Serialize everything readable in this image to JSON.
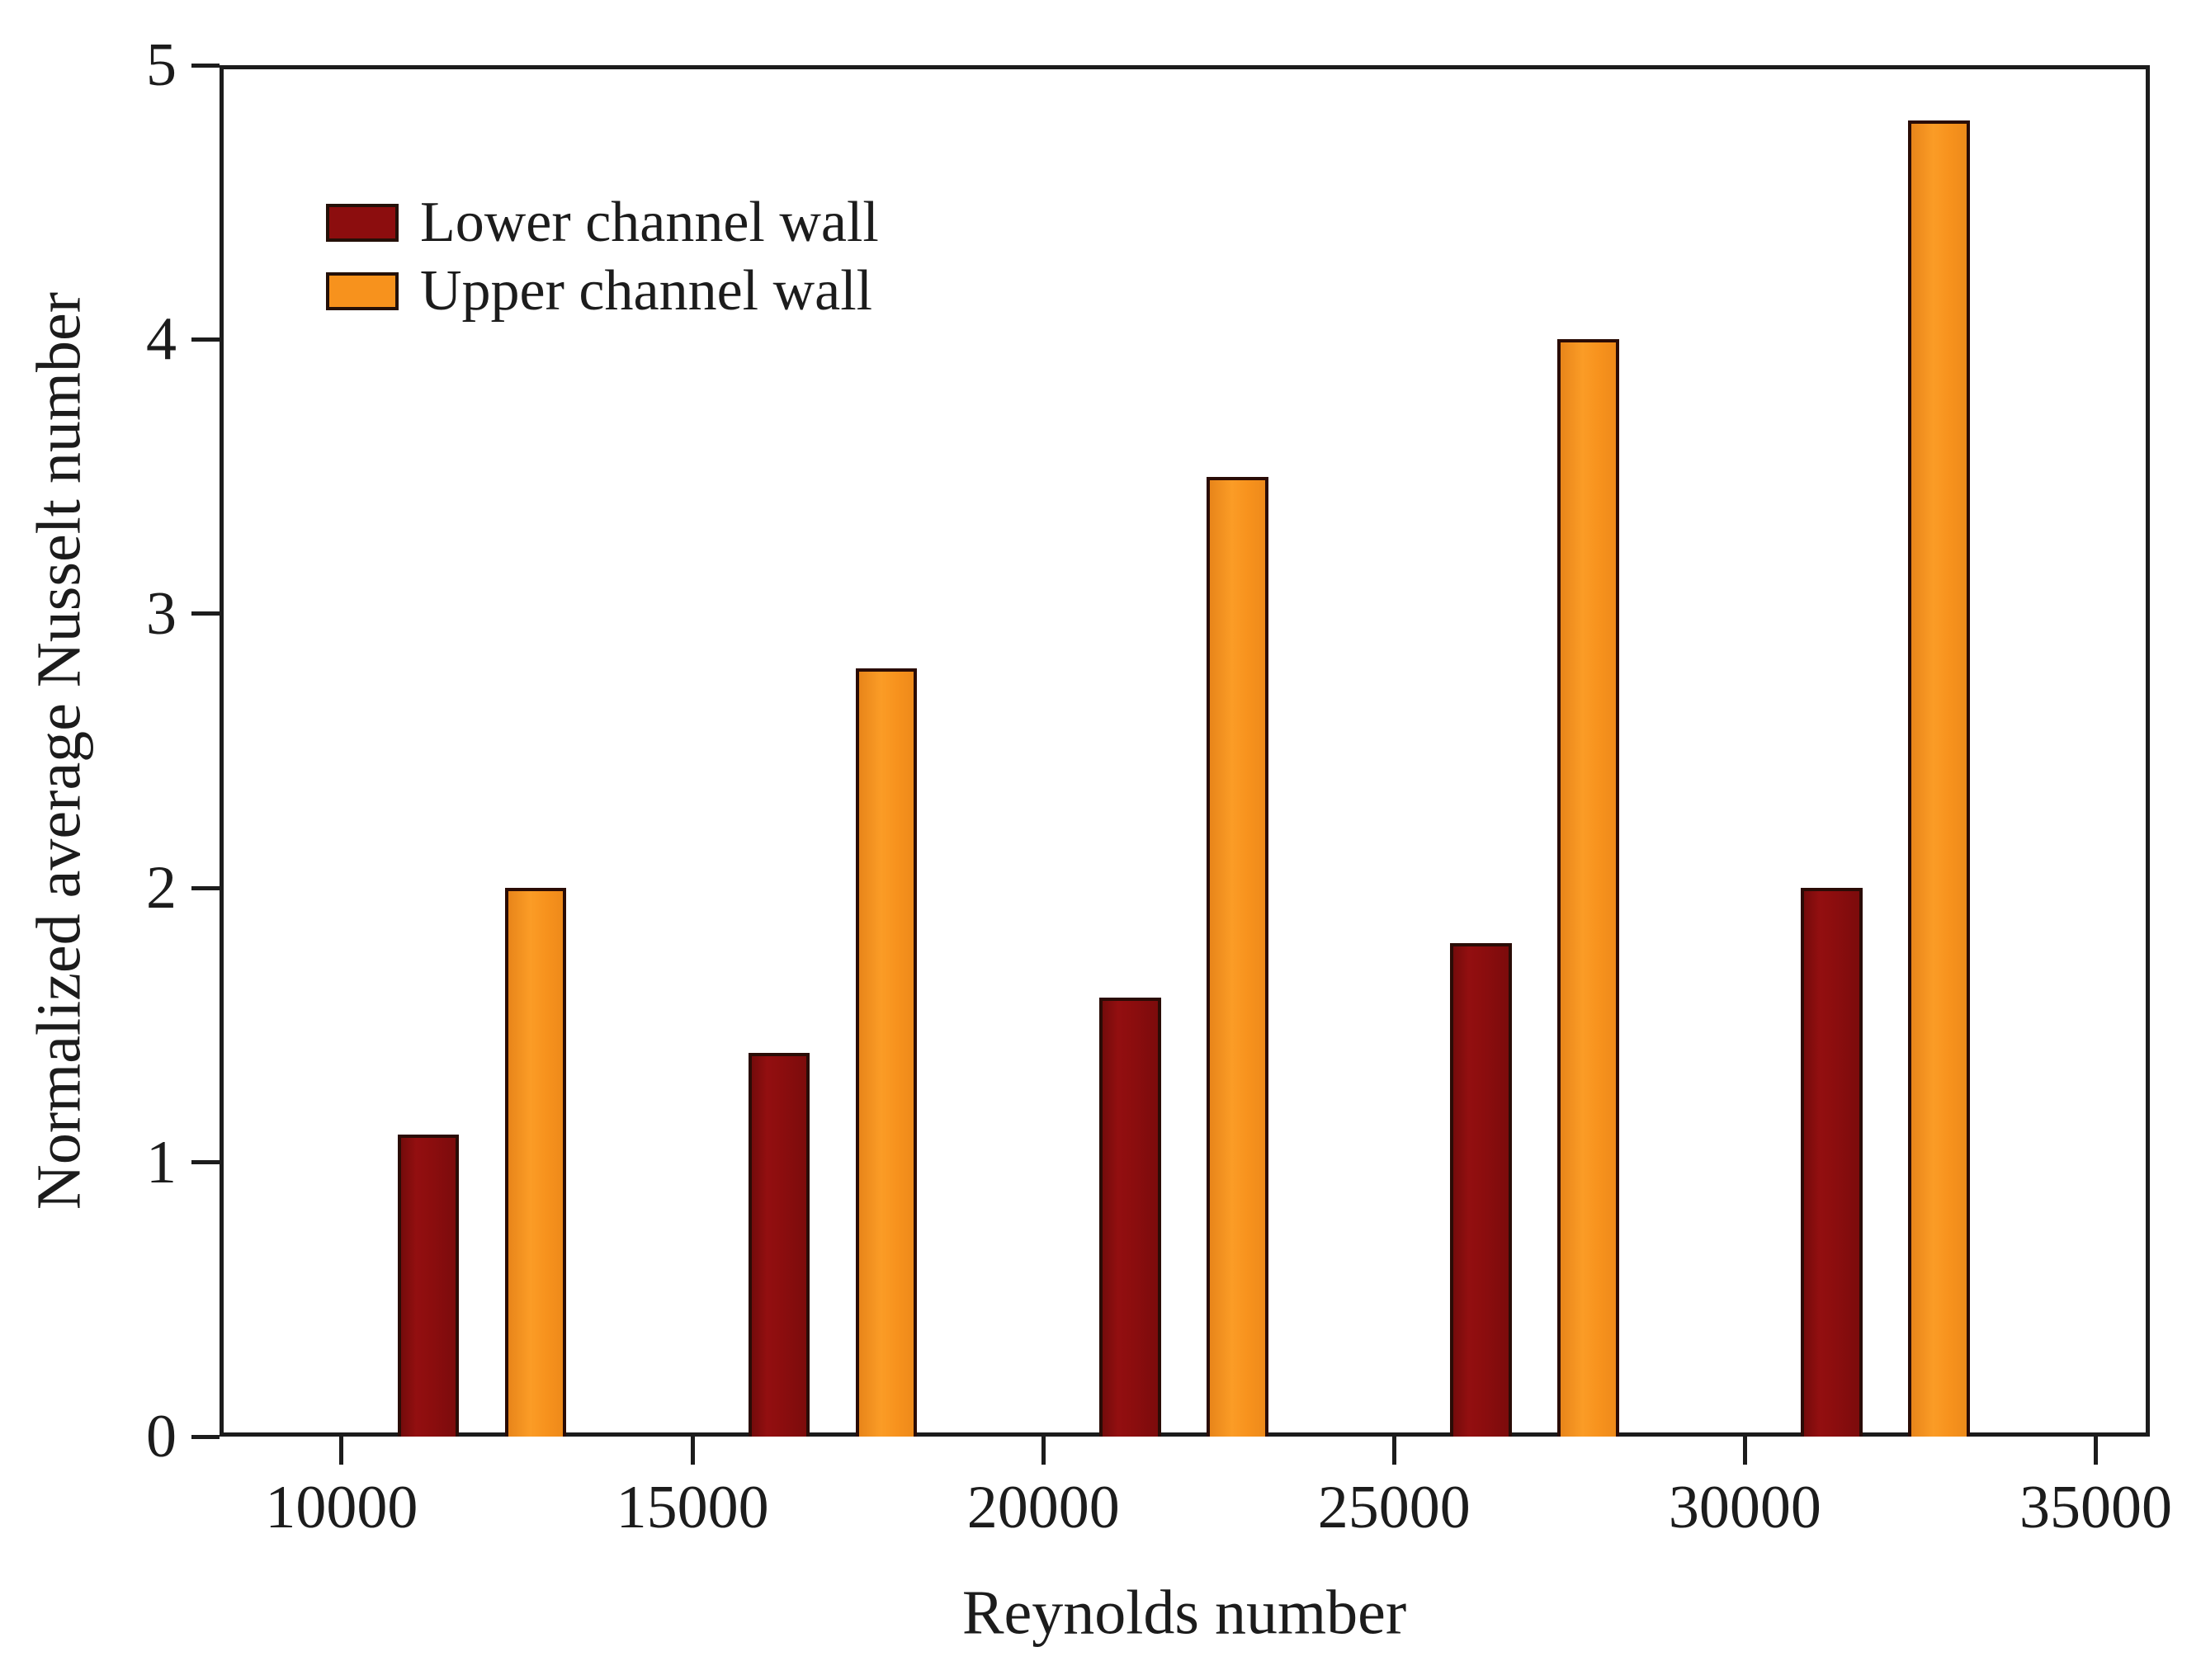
{
  "chart_data": {
    "type": "bar",
    "title": "",
    "xlabel": "Reynolds number",
    "ylabel": "Normalized average Nusselt number",
    "categories": [
      12000,
      17000,
      22000,
      27000,
      32000
    ],
    "series": [
      {
        "name": "Lower channel wall",
        "color": "#8c0d0e",
        "values": [
          1.1,
          1.4,
          1.6,
          1.8,
          2.0
        ]
      },
      {
        "name": "Upper channel wall",
        "color": "#f7921d",
        "values": [
          2.0,
          2.8,
          3.5,
          4.0,
          4.8
        ]
      }
    ],
    "xlim": [
      8260,
      35770
    ],
    "ylim": [
      0,
      5
    ],
    "xticks": [
      10000,
      15000,
      20000,
      25000,
      30000,
      35000
    ],
    "xtick_labels": [
      "10000",
      "15000",
      "20000",
      "25000",
      "30000",
      "35000"
    ],
    "yticks": [
      0,
      1,
      2,
      3,
      4,
      5
    ],
    "ytick_labels": [
      "0",
      "1",
      "2",
      "3",
      "4",
      "5"
    ],
    "grid": false,
    "frame": true,
    "legend_position": "upper-left-inside",
    "bar_width_x_units": 880,
    "bar_center_offset_x_units": 765,
    "axis_color": "#1c1c1c",
    "background_color": "#ffffff"
  }
}
